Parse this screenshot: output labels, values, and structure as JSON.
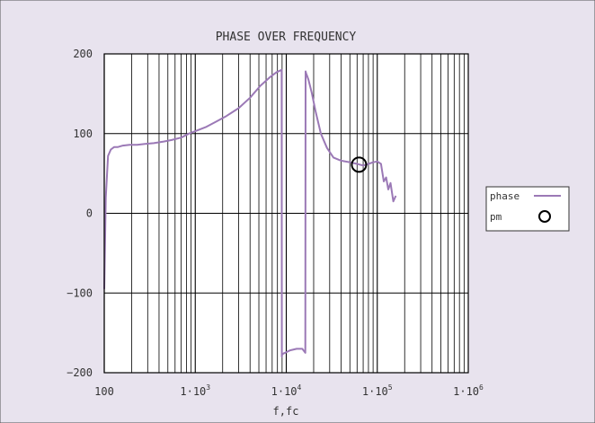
{
  "chart_data": {
    "type": "line",
    "title": "PHASE OVER FREQUENCY",
    "xlabel": "f,fc",
    "ylabel": "",
    "x_scale": "log",
    "xlim": [
      100,
      1000000
    ],
    "ylim": [
      -200,
      200
    ],
    "grid": true,
    "legend_placement": "right",
    "y_ticks": [
      {
        "value": 200,
        "label": "200"
      },
      {
        "value": 100,
        "label": "100"
      },
      {
        "value": 0,
        "label": "0"
      },
      {
        "value": -100,
        "label": "−100"
      },
      {
        "value": -200,
        "label": "−200"
      }
    ],
    "x_ticks": [
      {
        "value": 100,
        "label": "100",
        "exp": ""
      },
      {
        "value": 1000,
        "label": "1·10",
        "exp": "3"
      },
      {
        "value": 10000,
        "label": "1·10",
        "exp": "4"
      },
      {
        "value": 100000,
        "label": "1·10",
        "exp": "5"
      },
      {
        "value": 1000000,
        "label": "1·10",
        "exp": "6"
      }
    ],
    "series": [
      {
        "name": "phase",
        "color": "#9b79b6",
        "x": [
          100,
          104,
          110,
          118,
          128,
          140,
          160,
          190,
          230,
          280,
          350,
          450,
          550,
          700,
          850,
          1000,
          1300,
          1700,
          2200,
          3000,
          4000,
          5200,
          6500,
          7800,
          8900,
          8950,
          9000,
          9300,
          11000,
          13000,
          15000,
          16200,
          16300,
          16500,
          17500,
          19000,
          21000,
          24000,
          28000,
          33000,
          40000,
          50000,
          60000,
          70000,
          80000,
          90000,
          100000,
          110000,
          118000,
          125000,
          132000,
          140000,
          150000,
          160000
        ],
        "y": [
          -95,
          20,
          72,
          80,
          83,
          83,
          85,
          86,
          86,
          87,
          88,
          90,
          92,
          95,
          100,
          103,
          108,
          115,
          122,
          132,
          145,
          160,
          170,
          177,
          180,
          -180,
          -177,
          -176,
          -172,
          -170,
          -170,
          -175,
          178,
          176,
          168,
          152,
          128,
          100,
          82,
          70,
          66,
          64,
          62,
          60,
          62,
          64,
          65,
          62,
          40,
          45,
          30,
          38,
          15,
          22
        ]
      }
    ],
    "markers": [
      {
        "name": "pm",
        "shape": "circle",
        "x": 63000,
        "y": 61
      }
    ]
  }
}
